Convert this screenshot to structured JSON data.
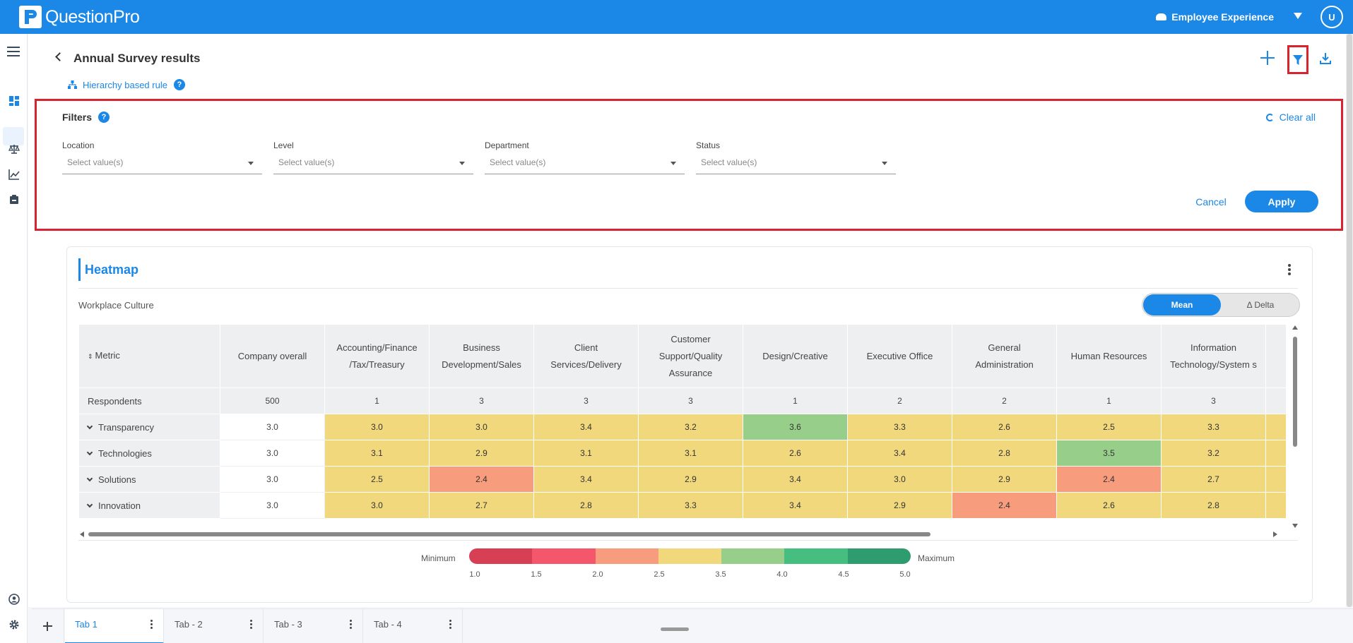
{
  "app": {
    "name": "QuestionPro",
    "product": "Employee Experience",
    "user_initial": "U"
  },
  "header": {
    "title": "Annual Survey results",
    "rule_link": "Hierarchy based rule",
    "help": "?"
  },
  "filters": {
    "title": "Filters",
    "help": "?",
    "clear_all": "Clear all",
    "fields": [
      {
        "label": "Location",
        "placeholder": "Select value(s)"
      },
      {
        "label": "Level",
        "placeholder": "Select value(s)"
      },
      {
        "label": "Department",
        "placeholder": "Select value(s)"
      },
      {
        "label": "Status",
        "placeholder": "Select value(s)"
      }
    ],
    "cancel": "Cancel",
    "apply": "Apply"
  },
  "heatmap": {
    "title": "Heatmap",
    "subtitle": "Workplace Culture",
    "toggle": {
      "mean": "Mean",
      "delta": "Δ Delta"
    },
    "columns": [
      "Metric",
      "Company overall",
      "Accounting/Finance /Tax/Treasury",
      "Business Development/Sales",
      "Client Services/Delivery",
      "Customer Support/Quality Assurance",
      "Design/Creative",
      "Executive Office",
      "General Administration",
      "Human Resources",
      "Information Technology/System s",
      ""
    ],
    "respondents": {
      "label": "Respondents",
      "values": [
        "500",
        "1",
        "3",
        "3",
        "3",
        "1",
        "2",
        "2",
        "1",
        "3",
        ""
      ]
    },
    "rows": [
      {
        "label": "Transparency",
        "overall": "3.0",
        "values": [
          "3.0",
          "3.0",
          "3.4",
          "3.2",
          "3.6",
          "3.3",
          "2.6",
          "2.5",
          "3.3",
          ""
        ]
      },
      {
        "label": "Technologies",
        "overall": "3.0",
        "values": [
          "3.1",
          "2.9",
          "3.1",
          "3.1",
          "2.6",
          "3.4",
          "2.8",
          "3.5",
          "3.2",
          ""
        ]
      },
      {
        "label": "Solutions",
        "overall": "3.0",
        "values": [
          "2.5",
          "2.4",
          "3.4",
          "2.9",
          "3.4",
          "3.0",
          "2.9",
          "2.4",
          "2.7",
          ""
        ]
      },
      {
        "label": "Innovation",
        "overall": "3.0",
        "values": [
          "3.0",
          "2.7",
          "2.8",
          "3.3",
          "3.4",
          "2.9",
          "2.4",
          "2.6",
          "2.8",
          ""
        ]
      }
    ],
    "legend": {
      "min_label": "Minimum",
      "max_label": "Maximum",
      "ticks": [
        "1.0",
        "1.5",
        "2.0",
        "2.5",
        "3.5",
        "4.0",
        "4.5",
        "5.0"
      ],
      "colors": [
        "#d73f55",
        "#f4576c",
        "#f79c7c",
        "#f1d87c",
        "#97cf8a",
        "#45be80",
        "#2f9c6f"
      ]
    }
  },
  "tabs": [
    {
      "label": "Tab 1",
      "active": true
    },
    {
      "label": "Tab - 2",
      "active": false
    },
    {
      "label": "Tab - 3",
      "active": false
    },
    {
      "label": "Tab - 4",
      "active": false
    }
  ],
  "colors": {
    "primary": "#1b87e6",
    "highlight_border": "#d9232e",
    "cell_yellow": "#f1d87c",
    "cell_green": "#97cf8a",
    "cell_orange": "#f79c7c"
  }
}
